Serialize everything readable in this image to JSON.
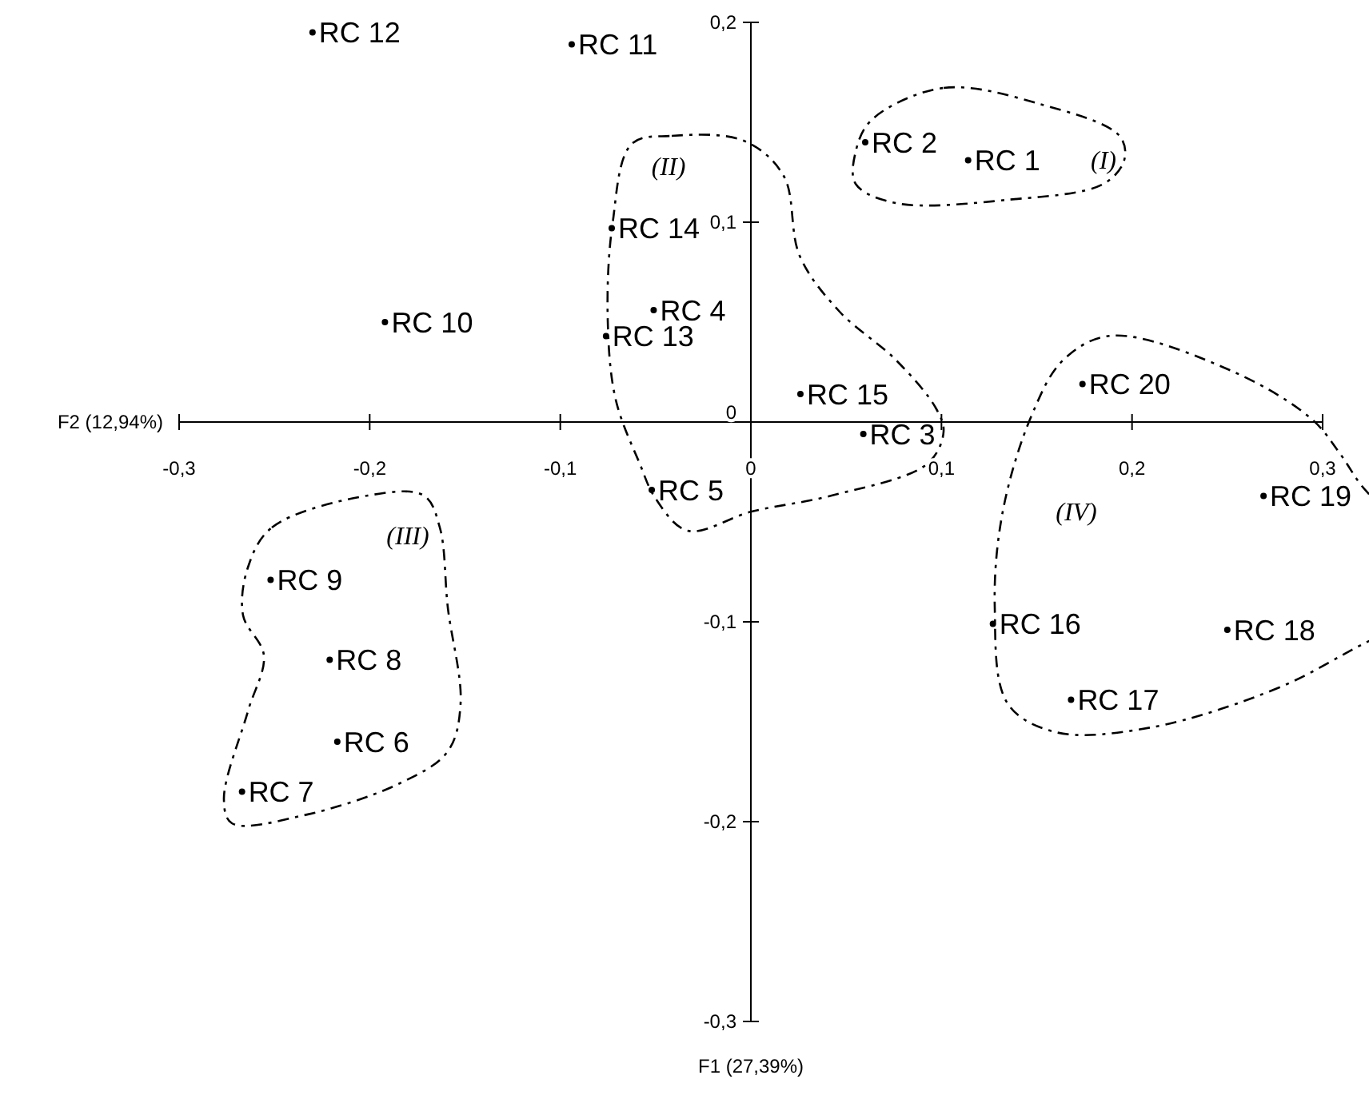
{
  "chart_data": {
    "type": "scatter",
    "xlabel": "F1 (27,39%)",
    "ylabel": "F2 (12,94%)",
    "x": [
      0.114,
      0.06,
      0.059,
      -0.051,
      -0.052,
      -0.217,
      -0.267,
      -0.221,
      -0.252,
      -0.192,
      -0.094,
      -0.23,
      -0.076,
      -0.073,
      0.026,
      0.127,
      0.168,
      0.25,
      0.269,
      0.174
    ],
    "values": [
      0.131,
      0.14,
      -0.006,
      0.056,
      -0.034,
      -0.16,
      -0.185,
      -0.119,
      -0.079,
      0.05,
      0.189,
      0.195,
      0.043,
      0.097,
      0.014,
      -0.101,
      -0.139,
      -0.104,
      -0.037,
      0.019
    ],
    "value_labels": [
      "RC 1",
      "RC 2",
      "RC 3",
      "RC 4",
      "RC 5",
      "RC 6",
      "RC 7",
      "RC 8",
      "RC 9",
      "RC 10",
      "RC 11",
      "RC 12",
      "RC 13",
      "RC 14",
      "RC 15",
      "RC 16",
      "RC 17",
      "RC 18",
      "RC 19",
      "RC 20"
    ],
    "marker": "circle",
    "xlim": [
      -0.3,
      0.3
    ],
    "ylim": [
      -0.3,
      0.2
    ],
    "xticks": [
      {
        "value": -0.3,
        "label": "-0,3"
      },
      {
        "value": -0.2,
        "label": "-0,2"
      },
      {
        "value": -0.1,
        "label": "-0,1"
      },
      0,
      {
        "value": 0.1,
        "label": "0,1"
      },
      {
        "value": 0.2,
        "label": "0,2"
      },
      {
        "value": 0.3,
        "label": "0,3"
      }
    ],
    "yticks": [
      {
        "value": -0.3,
        "label": "-0,3"
      },
      {
        "value": -0.2,
        "label": "-0,2"
      },
      {
        "value": -0.1,
        "label": "-0,1"
      },
      0,
      {
        "value": 0.1,
        "label": "0,1"
      },
      {
        "value": 0.2,
        "label": "0,2"
      }
    ],
    "annotations": [
      "(I)",
      "(II)",
      "(III)",
      "(IV)"
    ]
  }
}
